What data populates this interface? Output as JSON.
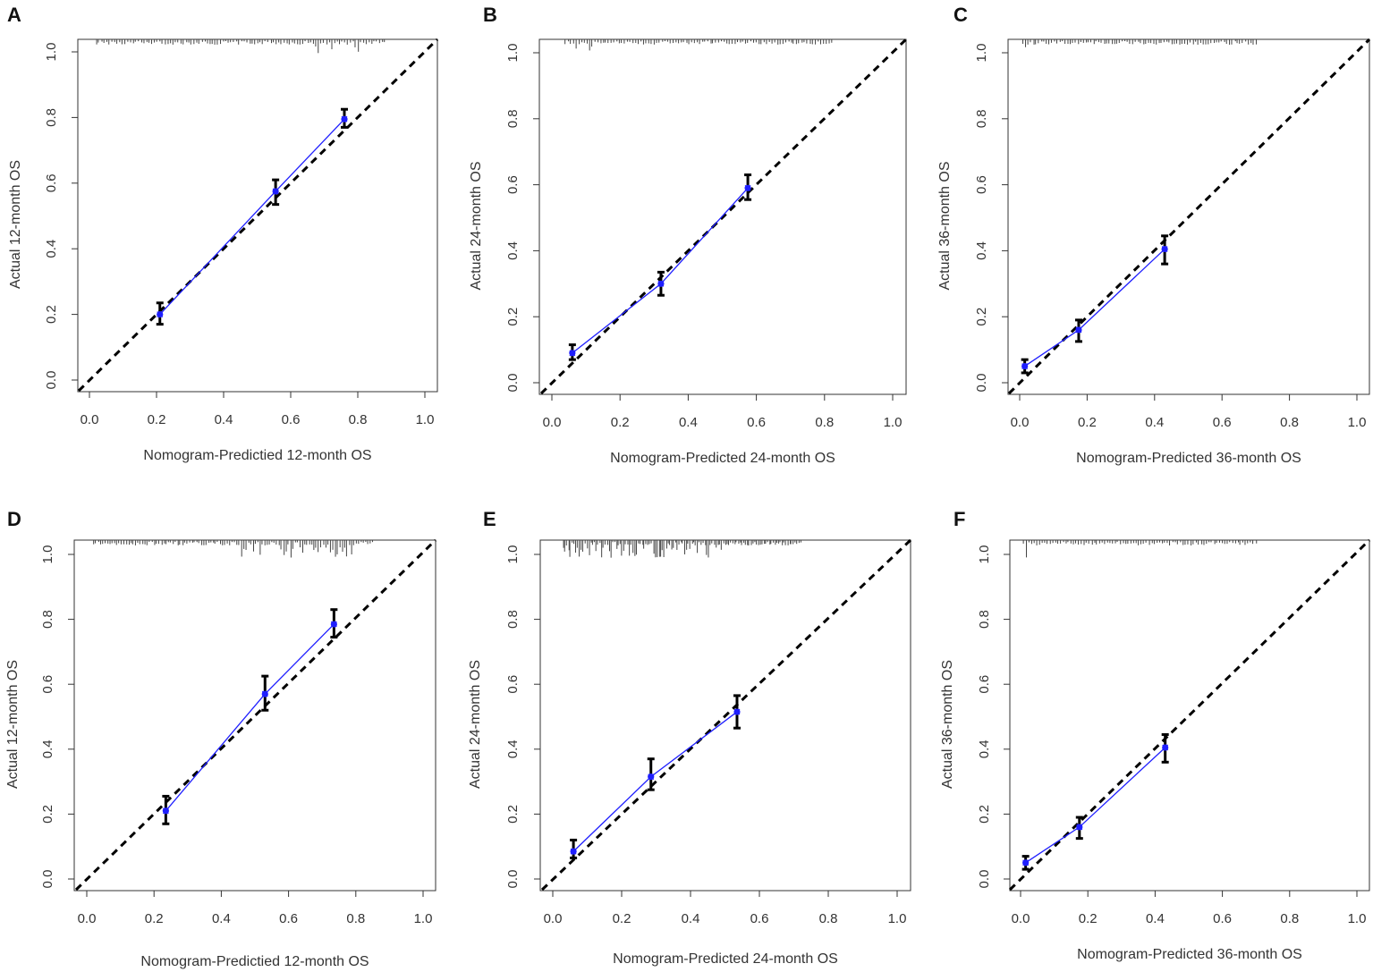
{
  "figure": {
    "panels": [
      "A",
      "B",
      "C",
      "D",
      "E",
      "F"
    ]
  },
  "colors": {
    "axis": "#333333",
    "ideal_line": "#000000",
    "calibration_line": "#1f1fff",
    "points": "#1f1fff",
    "error_bars": "#000000",
    "rug": "#444444"
  },
  "chart_data": [
    {
      "panel": "A",
      "type": "line",
      "xlabel": "Nomogram-Predictied 12-month OS",
      "ylabel": "Actual 12-month OS",
      "xlim": [
        0,
        1
      ],
      "ylim": [
        0,
        1
      ],
      "x_ticks": [
        "0.0",
        "0.2",
        "0.4",
        "0.6",
        "0.8",
        "1.0"
      ],
      "y_ticks": [
        "0.0",
        "0.2",
        "0.4",
        "0.6",
        "0.8",
        "1.0"
      ],
      "ideal_line": [
        [
          0,
          0
        ],
        [
          1,
          1
        ]
      ],
      "points": [
        {
          "x": 0.21,
          "y": 0.2,
          "lower": 0.17,
          "upper": 0.235
        },
        {
          "x": 0.555,
          "y": 0.575,
          "lower": 0.535,
          "upper": 0.61
        },
        {
          "x": 0.76,
          "y": 0.795,
          "lower": 0.77,
          "upper": 0.825
        }
      ],
      "rug": {
        "from": 0.02,
        "to": 0.88,
        "count": 110,
        "long_from": 0.66,
        "long_to": 0.82
      }
    },
    {
      "panel": "B",
      "type": "line",
      "xlabel": "Nomogram-Predicted 24-month OS",
      "ylabel": "Actual 24-month OS",
      "xlim": [
        0,
        1
      ],
      "ylim": [
        0,
        1
      ],
      "x_ticks": [
        "0.0",
        "0.2",
        "0.4",
        "0.6",
        "0.8",
        "1.0"
      ],
      "y_ticks": [
        "0.0",
        "0.2",
        "0.4",
        "0.6",
        "0.8",
        "1.0"
      ],
      "ideal_line": [
        [
          0,
          0
        ],
        [
          1,
          1
        ]
      ],
      "points": [
        {
          "x": 0.06,
          "y": 0.09,
          "lower": 0.07,
          "upper": 0.115
        },
        {
          "x": 0.32,
          "y": 0.3,
          "lower": 0.265,
          "upper": 0.335
        },
        {
          "x": 0.575,
          "y": 0.59,
          "lower": 0.555,
          "upper": 0.63
        }
      ],
      "rug": {
        "from": 0.04,
        "to": 0.82,
        "count": 100,
        "long_from": 0.04,
        "long_to": 0.12
      }
    },
    {
      "panel": "C",
      "type": "line",
      "xlabel": "Nomogram-Predicted 36-month OS",
      "ylabel": "Actual 36-month OS",
      "xlim": [
        0,
        1
      ],
      "ylim": [
        0,
        1
      ],
      "x_ticks": [
        "0.0",
        "0.2",
        "0.4",
        "0.6",
        "0.8",
        "1.0"
      ],
      "y_ticks": [
        "0.0",
        "0.2",
        "0.4",
        "0.6",
        "0.8",
        "1.0"
      ],
      "ideal_line": [
        [
          0,
          0
        ],
        [
          1,
          1
        ]
      ],
      "points": [
        {
          "x": 0.015,
          "y": 0.05,
          "lower": 0.03,
          "upper": 0.07
        },
        {
          "x": 0.175,
          "y": 0.16,
          "lower": 0.125,
          "upper": 0.19
        },
        {
          "x": 0.43,
          "y": 0.405,
          "lower": 0.36,
          "upper": 0.445
        }
      ],
      "rug": {
        "from": 0.01,
        "to": 0.7,
        "count": 90,
        "long_from": 0.01,
        "long_to": 0.03
      }
    },
    {
      "panel": "D",
      "type": "line",
      "xlabel": "Nomogram-Predictied 12-month OS",
      "ylabel": "Actual 12-month OS",
      "xlim": [
        0,
        1
      ],
      "ylim": [
        0,
        1
      ],
      "x_ticks": [
        "0.0",
        "0.2",
        "0.4",
        "0.6",
        "0.8",
        "1.0"
      ],
      "y_ticks": [
        "0.0",
        "0.2",
        "0.4",
        "0.6",
        "0.8",
        "1.0"
      ],
      "ideal_line": [
        [
          0,
          0
        ],
        [
          1,
          1
        ]
      ],
      "points": [
        {
          "x": 0.235,
          "y": 0.21,
          "lower": 0.17,
          "upper": 0.255
        },
        {
          "x": 0.53,
          "y": 0.57,
          "lower": 0.52,
          "upper": 0.625
        },
        {
          "x": 0.735,
          "y": 0.785,
          "lower": 0.745,
          "upper": 0.83
        }
      ],
      "rug": {
        "from": 0.02,
        "to": 0.85,
        "count": 120,
        "long_from": 0.45,
        "long_to": 0.8
      }
    },
    {
      "panel": "E",
      "type": "line",
      "xlabel": "Nomogram-Predicted 24-month OS",
      "ylabel": "Actual 24-month OS",
      "xlim": [
        0,
        1
      ],
      "ylim": [
        0,
        1
      ],
      "x_ticks": [
        "0.0",
        "0.2",
        "0.4",
        "0.6",
        "0.8",
        "1.0"
      ],
      "y_ticks": [
        "0.0",
        "0.2",
        "0.4",
        "0.6",
        "0.8",
        "1.0"
      ],
      "ideal_line": [
        [
          0,
          0
        ],
        [
          1,
          1
        ]
      ],
      "points": [
        {
          "x": 0.06,
          "y": 0.085,
          "lower": 0.065,
          "upper": 0.12
        },
        {
          "x": 0.285,
          "y": 0.315,
          "lower": 0.275,
          "upper": 0.37
        },
        {
          "x": 0.535,
          "y": 0.515,
          "lower": 0.465,
          "upper": 0.565
        }
      ],
      "rug": {
        "from": 0.03,
        "to": 0.72,
        "count": 130,
        "long_from": 0.03,
        "long_to": 0.5
      }
    },
    {
      "panel": "F",
      "type": "line",
      "xlabel": "Nomogram-Predicted 36-month OS",
      "ylabel": "Actual 36-month OS",
      "xlim": [
        0,
        1
      ],
      "ylim": [
        0,
        1
      ],
      "x_ticks": [
        "0.0",
        "0.2",
        "0.4",
        "0.6",
        "0.8",
        "1.0"
      ],
      "y_ticks": [
        "0.0",
        "0.2",
        "0.4",
        "0.6",
        "0.8",
        "1.0"
      ],
      "ideal_line": [
        [
          0,
          0
        ],
        [
          1,
          1
        ]
      ],
      "points": [
        {
          "x": 0.015,
          "y": 0.05,
          "lower": 0.03,
          "upper": 0.07
        },
        {
          "x": 0.175,
          "y": 0.16,
          "lower": 0.125,
          "upper": 0.19
        },
        {
          "x": 0.43,
          "y": 0.405,
          "lower": 0.36,
          "upper": 0.445
        }
      ],
      "rug": {
        "from": 0.01,
        "to": 0.7,
        "count": 90,
        "long_from": 0.01,
        "long_to": 0.03
      }
    }
  ]
}
